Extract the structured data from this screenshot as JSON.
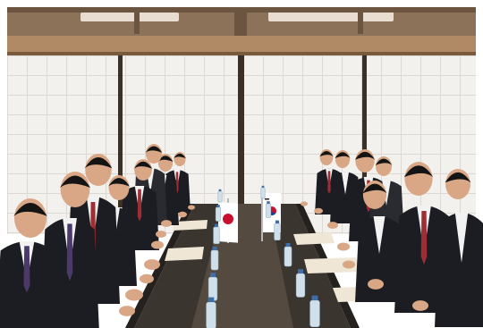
{
  "palette": {
    "frame": "#ffffff",
    "ceiling": "#8c7258",
    "ceiling_beam": "#6b5440",
    "ceiling_light": "#e8ddd0",
    "wood": "#b08a64",
    "wood_dark": "#7a5a3c",
    "paper_screen": "#f3f1ee",
    "screen_grid": "#dcd8d3",
    "screen_post": "#3a3026",
    "table_top": "#3b3530",
    "table_edge": "#25211e",
    "table_runner": "#554a40",
    "suit": "#1c1d22",
    "suit_light": "#2a2b31",
    "shirt": "#f2f2f2",
    "skin": "#d9a785",
    "hair": "#141414",
    "tie_red": "#9e2d34",
    "tie_striped": "#4a3a6b",
    "paper": "#efe6d6",
    "bottle": "#cfe0ea",
    "bottle_cap": "#3f6fa8",
    "flag_japan_field": "#ffffff",
    "flag_japan_disc": "#c8102e",
    "flag_korea_field": "#ffffff",
    "flag_korea_red": "#c8102e",
    "flag_korea_blue": "#0047a0",
    "flag_korea_lines": "#222222",
    "flag_pole": "#b9b9b9"
  }
}
